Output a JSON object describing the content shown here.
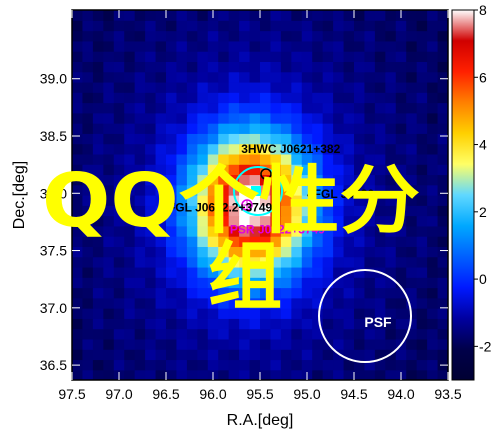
{
  "chart_data": {
    "type": "heatmap",
    "xlabel": "R.A.[deg]",
    "ylabel": "Dec.[deg]",
    "xlim": [
      97.5,
      93.5
    ],
    "ylim": [
      36.37,
      39.6
    ],
    "x_ticks": [
      "97.5",
      "97.0",
      "96.5",
      "96.0",
      "95.5",
      "95.0",
      "94.5",
      "94.0",
      "93.5"
    ],
    "y_ticks": [
      "36.5",
      "37.0",
      "37.5",
      "38.0",
      "38.5",
      "39.0"
    ],
    "colorbar": {
      "range": [
        -3,
        8
      ],
      "ticks": [
        "-2",
        "0",
        "2",
        "4",
        "6",
        "8"
      ],
      "colors": [
        "#000033",
        "#00004a",
        "#0000a0",
        "#0019ff",
        "#0060ff",
        "#00a8ff",
        "#60d8ff",
        "#ffff66",
        "#ffd000",
        "#ff8000",
        "#ff2000",
        "#d00000",
        "#ffffff"
      ]
    },
    "peak": {
      "ra": 95.6,
      "dec": 37.9,
      "value": 7.6
    },
    "annotations": [
      {
        "text": "3HWC J0621+382",
        "ra": 95.7,
        "dec": 38.35,
        "color": "#000000"
      },
      {
        "text": "4FGL J0620.",
        "ra": 95.0,
        "dec": 37.96,
        "color": "#000000"
      },
      {
        "text": "4FGL J0622.2+3749",
        "ra": 96.55,
        "dec": 37.84,
        "color": "#000000"
      },
      {
        "text": "PSR J0622+3749",
        "ra": 95.82,
        "dec": 37.65,
        "color": "#e000e0"
      }
    ],
    "psf": {
      "label": "PSF",
      "ra": 94.3,
      "dec": 37.0,
      "radius_deg": 0.38
    }
  },
  "watermark": {
    "line1": "QQ个性分",
    "line2": "组",
    "color": "#ffff00"
  }
}
